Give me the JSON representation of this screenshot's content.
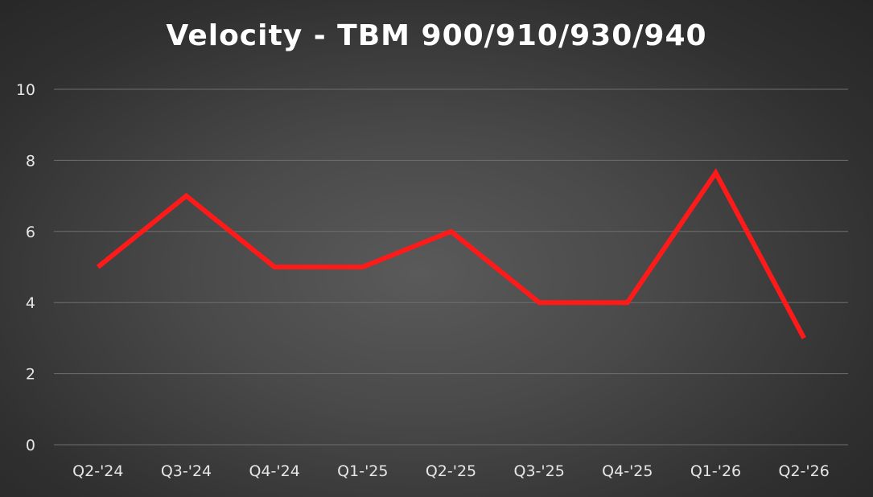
{
  "chart_data": {
    "type": "line",
    "title": "Velocity - TBM 900/910/930/940",
    "categories": [
      "Q2-'24",
      "Q3-'24",
      "Q4-'24",
      "Q1-'25",
      "Q2-'25",
      "Q3-'25",
      "Q4-'25",
      "Q1-'26",
      "Q2-'26"
    ],
    "series": [
      {
        "values": [
          5,
          7,
          5,
          5,
          6,
          4,
          4,
          7.65,
          3
        ],
        "color": "#ff1a1a"
      }
    ],
    "ylim": [
      0,
      10
    ],
    "yticks": [
      "0",
      "2",
      "4",
      "6",
      "8",
      "10"
    ],
    "grid": true,
    "legend": "none"
  }
}
